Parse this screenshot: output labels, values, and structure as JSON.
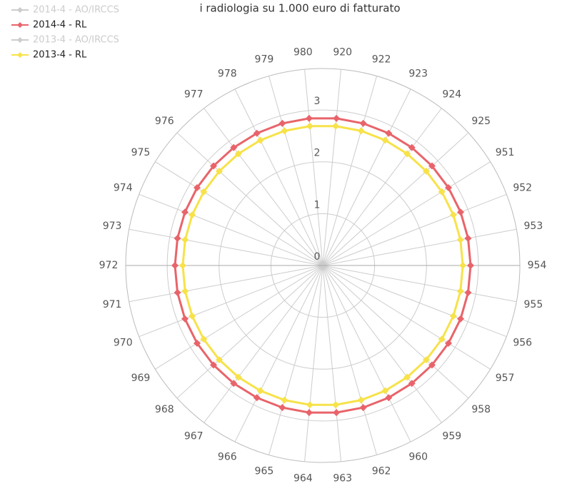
{
  "chart_data": {
    "type": "polar-line",
    "title": "i radiologia su 1.000 euro di fatturato",
    "categories": [
      "920",
      "922",
      "923",
      "924",
      "925",
      "951",
      "952",
      "953",
      "954",
      "955",
      "956",
      "957",
      "958",
      "959",
      "960",
      "962",
      "963",
      "964",
      "965",
      "966",
      "967",
      "968",
      "969",
      "970",
      "971",
      "972",
      "973",
      "974",
      "975",
      "976",
      "977",
      "978",
      "979",
      "980"
    ],
    "ylim": [
      0,
      3.8
    ],
    "yticks": [
      0,
      1,
      2,
      3
    ],
    "series": [
      {
        "name": "2014-4 - AO/IRCCS",
        "color": "#cccccc",
        "visible": false
      },
      {
        "name": "2014-4 - RL",
        "color": "#e8646a",
        "values": [
          2.85,
          2.85,
          2.85,
          2.85,
          2.85,
          2.85,
          2.85,
          2.85,
          2.85,
          2.85,
          2.85,
          2.85,
          2.85,
          2.85,
          2.85,
          2.85,
          2.85,
          2.85,
          2.85,
          2.85,
          2.85,
          2.85,
          2.85,
          2.85,
          2.85,
          2.85,
          2.85,
          2.85,
          2.85,
          2.85,
          2.85,
          2.85,
          2.85,
          2.85
        ]
      },
      {
        "name": "2013-4 - AO/IRCCS",
        "color": "#cccccc",
        "visible": false
      },
      {
        "name": "2013-4 - RL",
        "color": "#f7e24a",
        "values": [
          2.7,
          2.7,
          2.7,
          2.7,
          2.7,
          2.7,
          2.7,
          2.7,
          2.7,
          2.7,
          2.7,
          2.7,
          2.7,
          2.7,
          2.7,
          2.7,
          2.7,
          2.7,
          2.7,
          2.7,
          2.7,
          2.7,
          2.7,
          2.7,
          2.7,
          2.7,
          2.7,
          2.7,
          2.7,
          2.7,
          2.7,
          2.7,
          2.7,
          2.7
        ]
      }
    ]
  }
}
